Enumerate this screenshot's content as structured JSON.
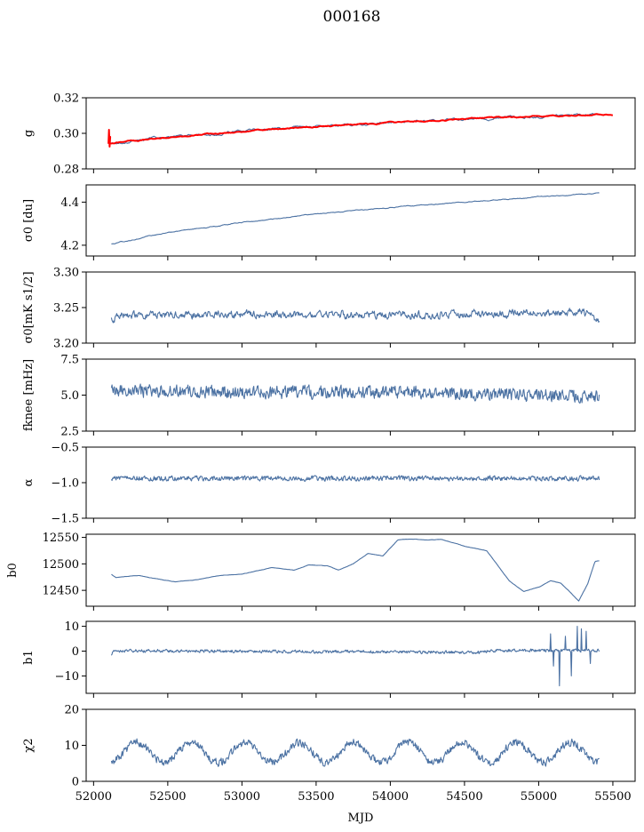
{
  "chart_data": {
    "type": "line",
    "title": "000168",
    "xlabel": "MJD",
    "xlim": [
      51950,
      55650
    ],
    "xticks": [
      52000,
      52500,
      53000,
      53500,
      54000,
      54500,
      55000,
      55500
    ],
    "xtick_labels": [
      "52000",
      "52500",
      "53000",
      "53500",
      "54000",
      "54500",
      "55000",
      "55500"
    ],
    "x_start": 52120,
    "x_end": 55410,
    "colors": {
      "series": "#4c72a3",
      "fit": "#ff0000"
    },
    "panels": [
      {
        "id": "g",
        "ylabel": "g",
        "ylim": [
          0.28,
          0.32
        ],
        "yticks": [
          0.28,
          0.3,
          0.32
        ],
        "ytick_labels": [
          "0.28",
          "0.30",
          "0.32"
        ],
        "trend": [
          [
            52120,
            0.2945
          ],
          [
            52500,
            0.298
          ],
          [
            53000,
            0.301
          ],
          [
            53500,
            0.304
          ],
          [
            54000,
            0.306
          ],
          [
            54500,
            0.308
          ],
          [
            55000,
            0.3095
          ],
          [
            55400,
            0.3105
          ]
        ],
        "noise": 0.0012,
        "noise_kind": "smooth",
        "fit": {
          "name": "fit",
          "trend": [
            [
              52100,
              0.294
            ],
            [
              52500,
              0.2978
            ],
            [
              53000,
              0.3012
            ],
            [
              53500,
              0.3038
            ],
            [
              54000,
              0.306
            ],
            [
              54500,
              0.308
            ],
            [
              55000,
              0.3098
            ],
            [
              55500,
              0.3108
            ]
          ]
        }
      },
      {
        "id": "sigma0_du",
        "ylabel": "σ0 [du]",
        "ylim": [
          4.15,
          4.48
        ],
        "yticks": [
          4.2,
          4.4
        ],
        "ytick_labels": [
          "4.2",
          "4.4"
        ],
        "trend": [
          [
            52120,
            4.205
          ],
          [
            52500,
            4.26
          ],
          [
            53000,
            4.305
          ],
          [
            53500,
            4.345
          ],
          [
            54000,
            4.375
          ],
          [
            54500,
            4.4
          ],
          [
            55000,
            4.425
          ],
          [
            55400,
            4.44
          ]
        ],
        "noise": 0.004,
        "noise_kind": "smooth"
      },
      {
        "id": "sigma0_mks",
        "ylabel": "σ0[mK s1/2]",
        "ylim": [
          3.2,
          3.3
        ],
        "yticks": [
          3.2,
          3.25,
          3.3
        ],
        "ytick_labels": [
          "3.20",
          "3.25",
          "3.30"
        ],
        "trend": [
          [
            52120,
            3.235
          ],
          [
            52200,
            3.24
          ],
          [
            53500,
            3.24
          ],
          [
            54500,
            3.24
          ],
          [
            55300,
            3.245
          ],
          [
            55400,
            3.232
          ]
        ],
        "noise": 0.007,
        "noise_kind": "wiggle"
      },
      {
        "id": "fknee",
        "ylabel": "fknee [mHz]",
        "ylim": [
          2.5,
          7.5
        ],
        "yticks": [
          2.5,
          5.0,
          7.5
        ],
        "ytick_labels": [
          "2.5",
          "5.0",
          "7.5"
        ],
        "trend": [
          [
            52120,
            5.3
          ],
          [
            53000,
            5.2
          ],
          [
            54000,
            5.2
          ],
          [
            55000,
            5.0
          ],
          [
            55400,
            4.9
          ]
        ],
        "noise": 0.45,
        "noise_kind": "jagged"
      },
      {
        "id": "alpha",
        "ylabel": "α",
        "ylim": [
          -1.5,
          -0.5
        ],
        "yticks": [
          -1.5,
          -1.0,
          -0.5
        ],
        "ytick_labels": [
          "−1.5",
          "−1.0",
          "−0.5"
        ],
        "trend": [
          [
            52120,
            -0.94
          ],
          [
            55400,
            -0.94
          ]
        ],
        "noise": 0.035,
        "noise_kind": "jagged"
      },
      {
        "id": "b0",
        "ylabel": "b0",
        "ylim": [
          12420,
          12556
        ],
        "yticks": [
          12450,
          12500,
          12550
        ],
        "ytick_labels": [
          "12450",
          "12500",
          "12550"
        ],
        "trend": [
          [
            52120,
            12480
          ],
          [
            52150,
            12474
          ],
          [
            52300,
            12478
          ],
          [
            52400,
            12473
          ],
          [
            52550,
            12466
          ],
          [
            52700,
            12470
          ],
          [
            52850,
            12478
          ],
          [
            53000,
            12480
          ],
          [
            53200,
            12493
          ],
          [
            53350,
            12488
          ],
          [
            53450,
            12498
          ],
          [
            53580,
            12496
          ],
          [
            53650,
            12488
          ],
          [
            53750,
            12500
          ],
          [
            53850,
            12520
          ],
          [
            53950,
            12515
          ],
          [
            54050,
            12545
          ],
          [
            54150,
            12547
          ],
          [
            54250,
            12545
          ],
          [
            54350,
            12546
          ],
          [
            54500,
            12533
          ],
          [
            54650,
            12525
          ],
          [
            54800,
            12468
          ],
          [
            54900,
            12448
          ],
          [
            55000,
            12456
          ],
          [
            55080,
            12468
          ],
          [
            55150,
            12463
          ],
          [
            55200,
            12450
          ],
          [
            55270,
            12430
          ],
          [
            55330,
            12462
          ],
          [
            55380,
            12505
          ],
          [
            55410,
            12506
          ]
        ],
        "noise": 0.6,
        "noise_kind": "smooth"
      },
      {
        "id": "b1",
        "ylabel": "b1",
        "ylim": [
          -17,
          12
        ],
        "yticks": [
          -10,
          0,
          10
        ],
        "ytick_labels": [
          "−10",
          "0",
          "10"
        ],
        "trend": [
          [
            52120,
            -1.5
          ],
          [
            52140,
            0.2
          ],
          [
            54600,
            -0.5
          ],
          [
            54700,
            0.2
          ],
          [
            55000,
            0.3
          ],
          [
            55400,
            0.2
          ]
        ],
        "noise": 0.6,
        "noise_kind": "jagged",
        "spikes": [
          [
            55080,
            7
          ],
          [
            55100,
            -6
          ],
          [
            55140,
            -14
          ],
          [
            55180,
            6
          ],
          [
            55220,
            -10
          ],
          [
            55260,
            10
          ],
          [
            55290,
            9
          ],
          [
            55320,
            8
          ],
          [
            55350,
            -5
          ]
        ]
      },
      {
        "id": "chi2",
        "ylabel": "χ2",
        "ylim": [
          0,
          20
        ],
        "yticks": [
          0,
          10,
          20
        ],
        "ytick_labels": [
          "0",
          "10",
          "20"
        ],
        "trend": [
          [
            52120,
            8
          ],
          [
            55400,
            8
          ]
        ],
        "noise": 1.1,
        "noise_kind": "jagged",
        "seasonal": {
          "amplitude": 2.8,
          "period": 365.25,
          "phase": 52200
        }
      }
    ]
  }
}
